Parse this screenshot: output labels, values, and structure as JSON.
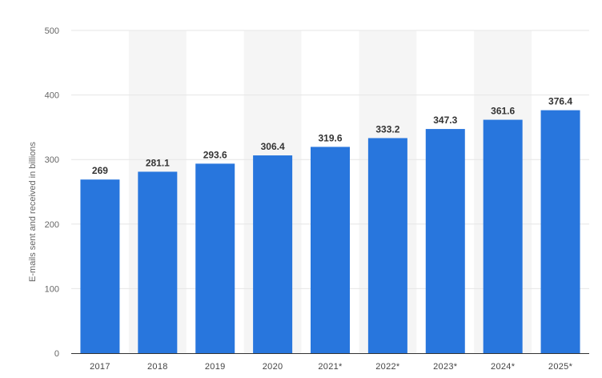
{
  "chart_data": {
    "type": "bar",
    "categories": [
      "2017",
      "2018",
      "2019",
      "2020",
      "2021*",
      "2022*",
      "2023*",
      "2024*",
      "2025*"
    ],
    "values": [
      269,
      281.1,
      293.6,
      306.4,
      319.6,
      333.2,
      347.3,
      361.6,
      376.4
    ],
    "value_labels": [
      "269",
      "281.1",
      "293.6",
      "306.4",
      "319.6",
      "333.2",
      "347.3",
      "361.6",
      "376.4"
    ],
    "title": "",
    "xlabel": "",
    "ylabel": "E-mails sent and received in billions",
    "ylim": [
      0,
      500
    ],
    "yticks": [
      0,
      100,
      200,
      300,
      400,
      500
    ],
    "grid": true,
    "alternating_column_shading": true,
    "bar_color": "#2876DD",
    "shade_color": "#F5F5F5",
    "grid_color": "#E6E6E6"
  }
}
